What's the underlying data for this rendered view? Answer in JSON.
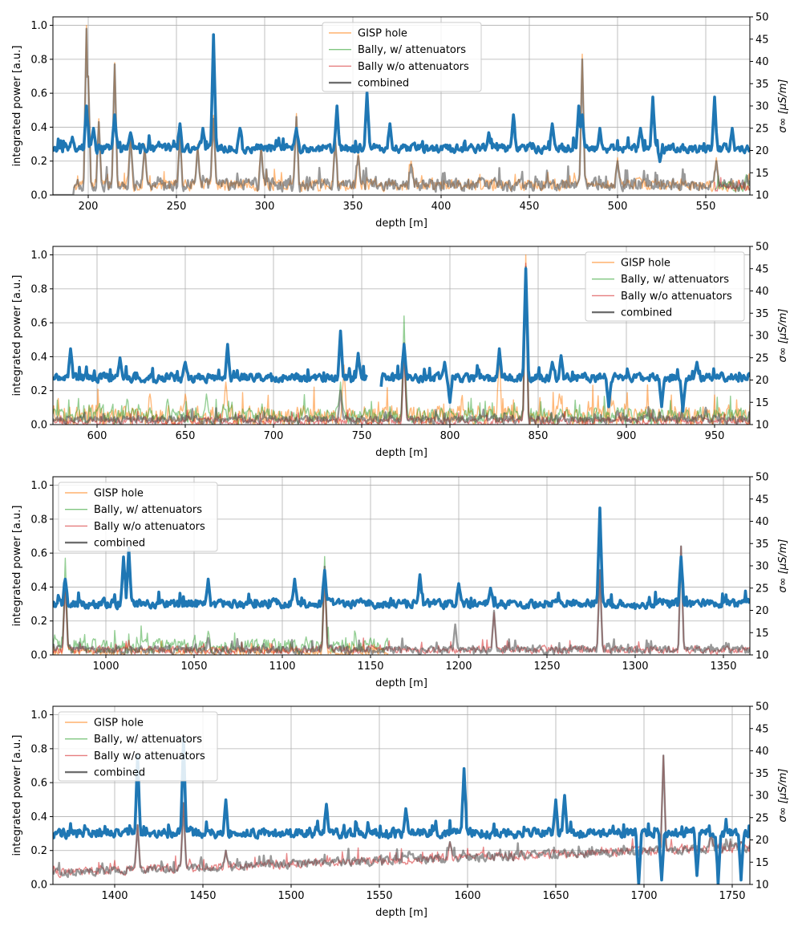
{
  "colors": {
    "gisp": "#ff7f0e",
    "bally_w": "#2ca02c",
    "bally_wo": "#d62728",
    "combined": "#555555",
    "sigma": "#1f77b4",
    "grid": "#b0b0b0"
  },
  "chart_data": [
    {
      "type": "line",
      "panel": 1,
      "xlabel": "depth [m]",
      "ylabel": "integrated power [a.u.]",
      "y2label": "σ∞ [μS/m]",
      "xlim": [
        180,
        575
      ],
      "ylim": [
        0,
        1.05
      ],
      "y2lim": [
        10,
        50
      ],
      "xticks": [
        200,
        250,
        300,
        350,
        400,
        450,
        500,
        550
      ],
      "yticks": [
        0.0,
        0.2,
        0.4,
        0.6,
        0.8,
        1.0
      ],
      "y2ticks": [
        10,
        15,
        20,
        25,
        30,
        35,
        40,
        45,
        50
      ],
      "legend": {
        "position": "upper-center",
        "entries": [
          "GISP hole",
          "Bally, w/ attenuators",
          "Bally w/o attenuators",
          "combined"
        ]
      },
      "series": [
        {
          "name": "GISP hole",
          "key": "gisp",
          "start": 192,
          "end": 575,
          "base": 0.06,
          "noise": 0.05,
          "trend": 0,
          "peaks": [
            [
              199,
              1.0
            ],
            [
              200,
              0.7
            ],
            [
              206,
              0.45
            ],
            [
              215,
              0.78
            ],
            [
              224,
              0.35
            ],
            [
              232,
              0.3
            ],
            [
              252,
              0.38
            ],
            [
              262,
              0.3
            ],
            [
              271,
              0.47
            ],
            [
              298,
              0.3
            ],
            [
              318,
              0.48
            ],
            [
              340,
              0.35
            ],
            [
              353,
              0.25
            ],
            [
              383,
              0.2
            ],
            [
              480,
              0.83
            ],
            [
              500,
              0.22
            ],
            [
              556,
              0.22
            ]
          ]
        },
        {
          "name": "Bally, w/ attenuators",
          "key": "bally_w",
          "start": 555,
          "end": 575,
          "base": 0.05,
          "noise": 0.04,
          "trend": 0,
          "peaks": [
            [
              573,
              0.12
            ]
          ]
        },
        {
          "name": "Bally w/o attenuators",
          "key": "bally_wo",
          "start": 555,
          "end": 575,
          "base": 0.04,
          "noise": 0.03,
          "trend": 0,
          "peaks": []
        },
        {
          "name": "combined",
          "key": "combined",
          "start": 180,
          "end": 575,
          "base": 0.06,
          "noise": 0.05,
          "trend": 0,
          "zero_before": 192,
          "peaks": [
            [
              199,
              0.98
            ],
            [
              200,
              0.7
            ],
            [
              206,
              0.43
            ],
            [
              215,
              0.77
            ],
            [
              224,
              0.33
            ],
            [
              232,
              0.28
            ],
            [
              252,
              0.36
            ],
            [
              262,
              0.28
            ],
            [
              271,
              0.45
            ],
            [
              298,
              0.28
            ],
            [
              318,
              0.46
            ],
            [
              340,
              0.33
            ],
            [
              353,
              0.23
            ],
            [
              383,
              0.18
            ],
            [
              480,
              0.8
            ],
            [
              500,
              0.2
            ],
            [
              556,
              0.2
            ]
          ]
        }
      ],
      "sigma": {
        "name": "σ∞",
        "base": 20.5,
        "noise": 1.3,
        "trend": 0,
        "start": 180,
        "end": 575,
        "peaks": [
          [
            191,
            23
          ],
          [
            199,
            30
          ],
          [
            203,
            25
          ],
          [
            215,
            28
          ],
          [
            224,
            24
          ],
          [
            252,
            26
          ],
          [
            265,
            25
          ],
          [
            271,
            46
          ],
          [
            286,
            25
          ],
          [
            318,
            25
          ],
          [
            341,
            30
          ],
          [
            358,
            33
          ],
          [
            371,
            26
          ],
          [
            427,
            24
          ],
          [
            441,
            28
          ],
          [
            463,
            26
          ],
          [
            478,
            30
          ],
          [
            480,
            28
          ],
          [
            490,
            25
          ],
          [
            513,
            25
          ],
          [
            520,
            32
          ],
          [
            555,
            32
          ],
          [
            565,
            25
          ]
        ],
        "dips": [
          [
            524,
            17.5
          ]
        ],
        "gaps": []
      }
    },
    {
      "type": "line",
      "panel": 2,
      "xlabel": "depth [m]",
      "ylabel": "integrated power [a.u.]",
      "y2label": "σ∞ [μS/m]",
      "xlim": [
        575,
        970
      ],
      "ylim": [
        0,
        1.05
      ],
      "y2lim": [
        10,
        50
      ],
      "xticks": [
        600,
        650,
        700,
        750,
        800,
        850,
        900,
        950
      ],
      "yticks": [
        0.0,
        0.2,
        0.4,
        0.6,
        0.8,
        1.0
      ],
      "y2ticks": [
        10,
        15,
        20,
        25,
        30,
        35,
        40,
        45,
        50
      ],
      "legend": {
        "position": "upper-right",
        "entries": [
          "GISP hole",
          "Bally, w/ attenuators",
          "Bally w/o attenuators",
          "combined"
        ]
      },
      "series": [
        {
          "name": "GISP hole",
          "key": "gisp",
          "start": 575,
          "end": 970,
          "base": 0.05,
          "noise": 0.08,
          "trend": 0,
          "peaks": [
            [
              630,
              0.18
            ],
            [
              650,
              0.18
            ],
            [
              673,
              0.25
            ],
            [
              740,
              0.35
            ],
            [
              774,
              0.48
            ],
            [
              828,
              0.4
            ],
            [
              843,
              1.0
            ],
            [
              862,
              0.18
            ]
          ]
        },
        {
          "name": "Bally, w/ attenuators",
          "key": "bally_w",
          "start": 575,
          "end": 970,
          "base": 0.05,
          "noise": 0.06,
          "trend": 0,
          "peaks": [
            [
              617,
              0.15
            ],
            [
              640,
              0.15
            ],
            [
              662,
              0.18
            ],
            [
              738,
              0.25
            ],
            [
              774,
              0.64
            ],
            [
              843,
              0.92
            ],
            [
              895,
              0.1
            ]
          ]
        },
        {
          "name": "Bally w/o attenuators",
          "key": "bally_wo",
          "start": 575,
          "end": 970,
          "base": 0.02,
          "noise": 0.03,
          "trend": 0,
          "peaks": [
            [
              774,
              0.45
            ],
            [
              843,
              0.95
            ]
          ]
        },
        {
          "name": "combined",
          "key": "combined",
          "start": 575,
          "end": 970,
          "base": 0.03,
          "noise": 0.03,
          "trend": 0,
          "peaks": [
            [
              738,
              0.2
            ],
            [
              774,
              0.48
            ],
            [
              843,
              0.93
            ],
            [
              895,
              0.08
            ],
            [
              945,
              0.1
            ]
          ]
        }
      ],
      "sigma": {
        "name": "σ∞",
        "base": 20.5,
        "noise": 1.3,
        "trend": 0,
        "start": 575,
        "end": 970,
        "peaks": [
          [
            585,
            27
          ],
          [
            613,
            25
          ],
          [
            650,
            24
          ],
          [
            674,
            28
          ],
          [
            738,
            31
          ],
          [
            748,
            26
          ],
          [
            774,
            28
          ],
          [
            797,
            24
          ],
          [
            828,
            27
          ],
          [
            843,
            45
          ],
          [
            858,
            24
          ],
          [
            863,
            25.5
          ],
          [
            940,
            24
          ]
        ],
        "dips": [
          [
            760,
            16
          ],
          [
            800,
            15
          ],
          [
            890,
            14
          ],
          [
            920,
            14
          ],
          [
            932,
            13
          ]
        ],
        "gaps": [
          [
            753,
            761
          ]
        ]
      }
    },
    {
      "type": "line",
      "panel": 3,
      "xlabel": "depth [m]",
      "ylabel": "integrated power [a.u.]",
      "y2label": "σ∞ [μS/m]",
      "xlim": [
        970,
        1365
      ],
      "ylim": [
        0,
        1.05
      ],
      "y2lim": [
        10,
        50
      ],
      "xticks": [
        1000,
        1050,
        1100,
        1150,
        1200,
        1250,
        1300,
        1350
      ],
      "yticks": [
        0.0,
        0.2,
        0.4,
        0.6,
        0.8,
        1.0
      ],
      "y2ticks": [
        10,
        15,
        20,
        25,
        30,
        35,
        40,
        45,
        50
      ],
      "legend": {
        "position": "upper-left",
        "entries": [
          "GISP hole",
          "Bally, w/ attenuators",
          "Bally w/o attenuators",
          "combined"
        ]
      },
      "series": [
        {
          "name": "GISP hole",
          "key": "gisp",
          "start": 970,
          "end": 1160,
          "base": 0.02,
          "noise": 0.03,
          "trend": 0,
          "peaks": [
            [
              977,
              0.45
            ],
            [
              1124,
              0.5
            ]
          ]
        },
        {
          "name": "Bally, w/ attenuators",
          "key": "bally_w",
          "start": 970,
          "end": 1160,
          "base": 0.05,
          "noise": 0.06,
          "trend": 0,
          "peaks": [
            [
              971,
              0.1
            ],
            [
              977,
              0.57
            ],
            [
              1058,
              0.14
            ],
            [
              1124,
              0.58
            ],
            [
              1150,
              0.1
            ]
          ]
        },
        {
          "name": "Bally w/o attenuators",
          "key": "bally_wo",
          "start": 970,
          "end": 1365,
          "base": 0.03,
          "noise": 0.03,
          "trend": 0,
          "peaks": [
            [
              977,
              0.45
            ],
            [
              1124,
              0.5
            ],
            [
              1220,
              0.25
            ],
            [
              1280,
              0.5
            ],
            [
              1326,
              0.64
            ]
          ]
        },
        {
          "name": "combined",
          "key": "combined",
          "start": 970,
          "end": 1365,
          "base": 0.03,
          "noise": 0.03,
          "trend": 0,
          "peaks": [
            [
              977,
              0.45
            ],
            [
              1058,
              0.1
            ],
            [
              1124,
              0.52
            ],
            [
              1198,
              0.18
            ],
            [
              1220,
              0.26
            ],
            [
              1280,
              0.5
            ],
            [
              1326,
              0.64
            ]
          ]
        }
      ],
      "sigma": {
        "name": "σ∞",
        "base": 21.5,
        "noise": 1.3,
        "trend": 0,
        "start": 970,
        "end": 1365,
        "peaks": [
          [
            977,
            27
          ],
          [
            1010,
            32
          ],
          [
            1013,
            34
          ],
          [
            1058,
            27
          ],
          [
            1107,
            27
          ],
          [
            1124,
            29
          ],
          [
            1178,
            28
          ],
          [
            1200,
            26
          ],
          [
            1218,
            25
          ],
          [
            1280,
            43
          ],
          [
            1326,
            32
          ]
        ],
        "dips": [],
        "gaps": []
      }
    },
    {
      "type": "line",
      "panel": 4,
      "xlabel": "depth [m]",
      "ylabel": "integrated power [a.u.]",
      "y2label": "σ∞ [μS/m]",
      "xlim": [
        1365,
        1760
      ],
      "ylim": [
        0,
        1.05
      ],
      "y2lim": [
        10,
        50
      ],
      "xticks": [
        1400,
        1450,
        1500,
        1550,
        1600,
        1650,
        1700,
        1750
      ],
      "yticks": [
        0.0,
        0.2,
        0.4,
        0.6,
        0.8,
        1.0
      ],
      "y2ticks": [
        10,
        15,
        20,
        25,
        30,
        35,
        40,
        45,
        50
      ],
      "legend": {
        "position": "upper-left",
        "entries": [
          "GISP hole",
          "Bally, w/ attenuators",
          "Bally w/o attenuators",
          "combined"
        ]
      },
      "series": [
        {
          "name": "Bally w/o attenuators",
          "key": "bally_wo",
          "start": 1365,
          "end": 1760,
          "base": 0.07,
          "noise": 0.035,
          "trend": 0.15,
          "peaks": [
            [
              1413,
              0.35
            ],
            [
              1439,
              0.48
            ],
            [
              1463,
              0.2
            ],
            [
              1590,
              0.25
            ],
            [
              1711,
              0.76
            ],
            [
              1738,
              0.3
            ],
            [
              1755,
              0.25
            ]
          ]
        },
        {
          "name": "combined",
          "key": "combined",
          "start": 1365,
          "end": 1760,
          "base": 0.07,
          "noise": 0.035,
          "trend": 0.15,
          "peaks": [
            [
              1413,
              0.35
            ],
            [
              1439,
              0.48
            ],
            [
              1463,
              0.2
            ],
            [
              1590,
              0.25
            ],
            [
              1711,
              0.76
            ],
            [
              1738,
              0.3
            ],
            [
              1755,
              0.25
            ]
          ]
        }
      ],
      "sigma": {
        "name": "σ∞",
        "base": 21.5,
        "noise": 1.4,
        "trend": 0,
        "start": 1365,
        "end": 1760,
        "peaks": [
          [
            1413,
            39
          ],
          [
            1439,
            43
          ],
          [
            1463,
            29
          ],
          [
            1520,
            28
          ],
          [
            1565,
            27
          ],
          [
            1598,
            36
          ],
          [
            1650,
            29
          ],
          [
            1655,
            30
          ]
        ],
        "dips": [
          [
            1697,
            10
          ],
          [
            1710,
            11
          ],
          [
            1730,
            12
          ],
          [
            1742,
            10
          ],
          [
            1755,
            11
          ]
        ],
        "gaps": []
      }
    }
  ]
}
